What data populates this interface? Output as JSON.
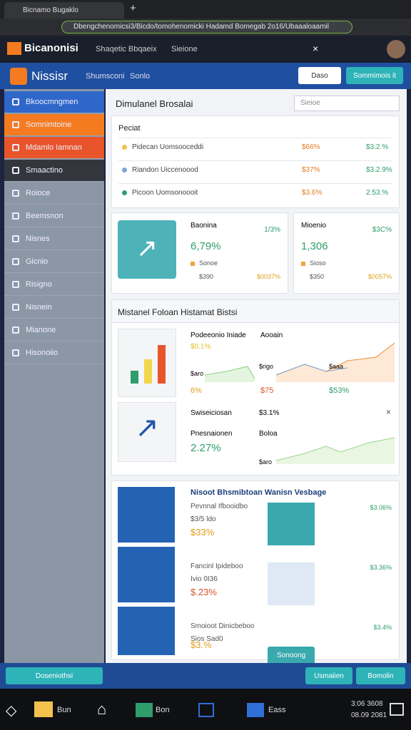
{
  "browser": {
    "tab_title": "Bicnamo Bugaklo",
    "url": "Dbengchenomicsi3/Bicdo/tomohenomicki Hadamd Bomegab 2o16/Ubaaaloaamil"
  },
  "app_header": {
    "logo": "Bicanonisi",
    "search": "Shaqetic Bbqaeix",
    "tab": "Sieione"
  },
  "sub_header": {
    "title": "Nissisr",
    "links": [
      "Shumsconi",
      "Sonlo"
    ],
    "buttons": [
      "Daso",
      "Sommimois it"
    ]
  },
  "sidebar": {
    "items": [
      "Bkoocmngmen",
      "Somnimtoine",
      "Mdamlo Iamnan",
      "Smaactino",
      "Roioce",
      "Beemsnon",
      "Nisnes",
      "Gicnio",
      "Risigno",
      "Nisnein",
      "Mianone",
      "Hisonoiio"
    ]
  },
  "main": {
    "title": "Dimulanel Brosalai",
    "search": "Sieioe",
    "table": {
      "title": "Peciat",
      "rows": [
        [
          "Pidecan Uomsooceddi",
          "$66%",
          "$3.2.%"
        ],
        [
          "Riandon Uiccenoood",
          "$37%",
          "$3.2.9%"
        ],
        [
          "Picoon Uomsonoooit",
          "$3.6%",
          "2.53.%"
        ]
      ]
    },
    "kpis": [
      {
        "label": "Baonina",
        "change": "1/3%",
        "value": "6,79%",
        "legend": [
          "Sonoe",
          "$390",
          "$0037%"
        ]
      },
      {
        "label": "Mioenio",
        "change": "$3C%",
        "value": "1,306",
        "legend": [
          "Sioso",
          "$350",
          "$0057%"
        ]
      }
    ],
    "section": {
      "title": "Mistanel Foloan Histamat Bistsi",
      "chart_title": "Podeeonio Iniade",
      "chart_sub": "$0.1%",
      "series": "Aooain",
      "labels": [
        "$aro",
        "$rigo",
        "$aaa"
      ],
      "stats": [
        "6%",
        "$75",
        "$53%"
      ],
      "row2": {
        "label": "Swiseiciosan",
        "mid": "$3.1%",
        "name": "Pnesnaionen",
        "value": "2.27%",
        "series": "Boloa",
        "axis": "$aro"
      }
    },
    "promo": {
      "title": "Nisoot Bhsmibtoan Wanisn Vesbage",
      "rows": [
        {
          "label": "Pevnnal Ifbooidbo",
          "sub": "$3/5 ldo",
          "value": "$33%",
          "right": "$3.06%"
        },
        {
          "label": "Fancinl Ipideboo",
          "sub": "Ivio 0I36",
          "value": "$.23%",
          "right": "$3.36%"
        },
        {
          "label": "Smoioot Dinicbeboo",
          "sub": "Sios Sad0",
          "value": "$3.%",
          "button": "Sonoong",
          "right": "$3.4%"
        }
      ]
    }
  },
  "footer": {
    "left": "Doseniothsi",
    "buttons": [
      "Usmaiien",
      "Bomolin"
    ]
  },
  "taskbar": {
    "apps": [
      "Bun",
      "Bon",
      "Eass"
    ],
    "clock": [
      "3:06 3608",
      "08.09 2081"
    ]
  }
}
